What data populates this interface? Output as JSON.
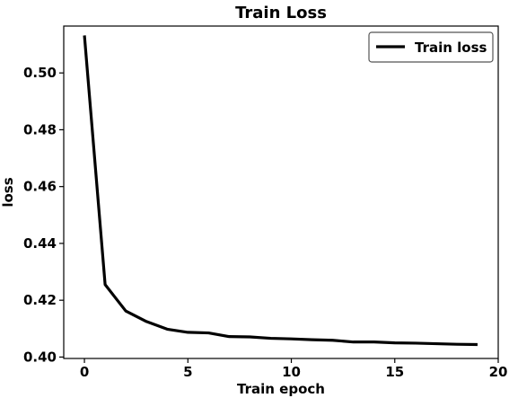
{
  "chart_data": {
    "type": "line",
    "title": "Train Loss",
    "xlabel": "Train epoch",
    "ylabel": "loss",
    "xlim": [
      -1,
      20
    ],
    "ylim": [
      0.3995,
      0.5165
    ],
    "xticks": [
      0,
      5,
      10,
      15,
      20
    ],
    "yticks": [
      0.4,
      0.42,
      0.44,
      0.46,
      0.48,
      0.5
    ],
    "grid": false,
    "legend_position": "top-right",
    "x": [
      0,
      1,
      2,
      3,
      4,
      5,
      6,
      7,
      8,
      9,
      10,
      11,
      12,
      13,
      14,
      15,
      16,
      17,
      18,
      19
    ],
    "series": [
      {
        "name": "Train loss",
        "color": "#000000",
        "values": [
          0.5132,
          0.4255,
          0.4162,
          0.4125,
          0.4098,
          0.4087,
          0.4085,
          0.4072,
          0.4071,
          0.4066,
          0.4064,
          0.4061,
          0.4059,
          0.4053,
          0.4053,
          0.405,
          0.4049,
          0.4047,
          0.4045,
          0.4044
        ]
      }
    ]
  }
}
